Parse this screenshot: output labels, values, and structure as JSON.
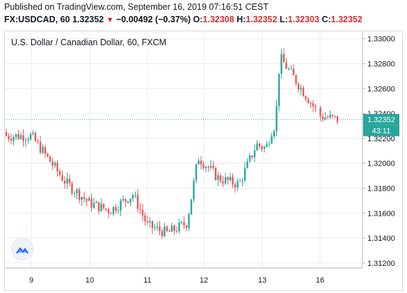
{
  "header": {
    "published": "Published on TradingView.com, September 16, 2019 07:16:51 CEST",
    "symbol": "FX:USDCAD, 60",
    "last": "1.32352",
    "change": "−0.00492 (−0.37%)",
    "o_label": "O:",
    "o_value": "1.32308",
    "h_label": "H:",
    "h_value": "1.32352",
    "l_label": "L:",
    "l_value": "1.32303",
    "c_label": "C:",
    "c_value": "1.32352"
  },
  "chart_title": "U.S. Dollar / Canadian Dollar, 60, FXCM",
  "price_badge": {
    "value": "1.32352",
    "countdown": "43:11"
  },
  "colors": {
    "up": "#26a69a",
    "down": "#ef5350",
    "badge": "#26a69a",
    "grid": "#e8ebef"
  },
  "icons": {
    "logo": "tradingview-logo-icon",
    "change_arrow": "down-triangle-icon"
  },
  "chart_data": {
    "type": "candlestick",
    "title": "U.S. Dollar / Canadian Dollar, 60, FXCM",
    "x_tick_labels": [
      "9",
      "10",
      "11",
      "12",
      "13",
      "16"
    ],
    "y_tick_labels": [
      "1.33000",
      "1.32800",
      "1.32600",
      "1.32400",
      "1.32200",
      "1.32000",
      "1.31800",
      "1.31600",
      "1.31400",
      "1.31200"
    ],
    "ylim": [
      1.3116,
      1.3306
    ],
    "grid": true,
    "last_price": 1.32352,
    "series": [
      {
        "x": [
          "9",
          "9.5",
          "10",
          "10.5",
          "11",
          "11.5",
          "12",
          "12.5",
          "13",
          "13.5",
          "13.75",
          "16"
        ],
        "values": [
          1.3222,
          1.3175,
          1.3168,
          1.3175,
          1.3152,
          1.3145,
          1.3205,
          1.3188,
          1.3215,
          1.3225,
          1.3285,
          1.3235
        ]
      }
    ]
  }
}
